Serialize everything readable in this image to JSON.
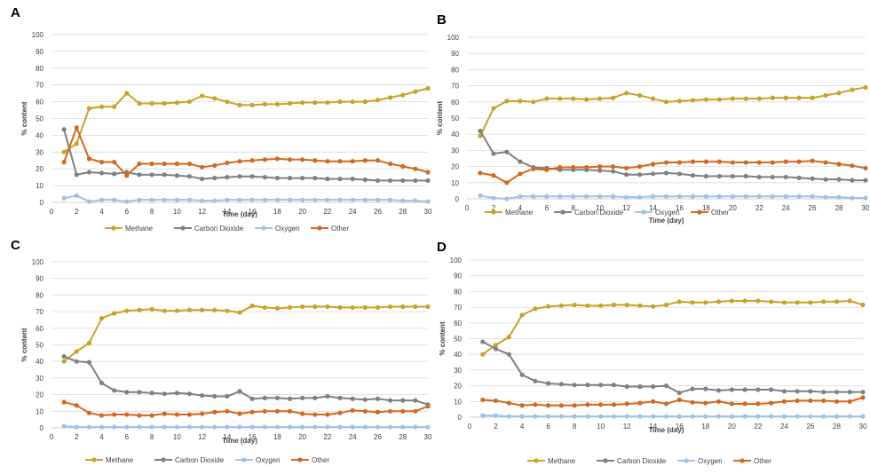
{
  "colors": {
    "Methane": "#C9A227",
    "Carbon Dioxide": "#808080",
    "Oxygen": "#9DC3E6",
    "Other": "#D2691E",
    "grid": "#D9D9D9",
    "axis": "#BFBFBF"
  },
  "chart_data": [
    {
      "panel": "A",
      "type": "line",
      "xlabel": "Time (day)",
      "ylabel": "% content",
      "xlim": [
        0,
        30
      ],
      "ylim": [
        0,
        100
      ],
      "xticks": [
        0,
        2,
        4,
        6,
        8,
        10,
        12,
        14,
        16,
        18,
        20,
        22,
        24,
        26,
        28,
        30
      ],
      "yticks": [
        0,
        10,
        20,
        30,
        40,
        50,
        60,
        70,
        80,
        90,
        100
      ],
      "grid": true,
      "legend_position": "bottom",
      "x": [
        1,
        2,
        3,
        4,
        5,
        6,
        7,
        8,
        9,
        10,
        11,
        12,
        13,
        14,
        15,
        16,
        17,
        18,
        19,
        20,
        21,
        22,
        23,
        24,
        25,
        26,
        27,
        28,
        29,
        30
      ],
      "series": [
        {
          "name": "Methane",
          "values": [
            30,
            35,
            56,
            57,
            57,
            65,
            59,
            59,
            59,
            59.5,
            60,
            63.5,
            62,
            60,
            58,
            58,
            58.5,
            58.5,
            59,
            59.5,
            59.5,
            59.5,
            60,
            60,
            60,
            61,
            62.5,
            64,
            66,
            68
          ]
        },
        {
          "name": "Carbon Dioxide",
          "values": [
            43.5,
            16.5,
            18,
            17.5,
            17,
            18,
            16.5,
            16.5,
            16.5,
            16,
            15.5,
            14,
            14.5,
            15,
            15.5,
            15.5,
            15,
            14.5,
            14.5,
            14.5,
            14.5,
            14,
            14,
            14,
            13.5,
            13,
            13,
            13,
            13,
            13
          ]
        },
        {
          "name": "Oxygen",
          "values": [
            2.5,
            4,
            0.5,
            1.5,
            1.5,
            0.5,
            1.5,
            1.5,
            1.5,
            1.5,
            1.5,
            1,
            1,
            1.5,
            1.5,
            1.5,
            1.5,
            1.5,
            1.5,
            1.5,
            1.5,
            1.5,
            1.5,
            1.5,
            1.5,
            1.5,
            1.5,
            1,
            1,
            0.5
          ]
        },
        {
          "name": "Other",
          "values": [
            24,
            44.5,
            26,
            24,
            24,
            16,
            23,
            23,
            23,
            23,
            23,
            21,
            22,
            23.5,
            24.5,
            25,
            25.5,
            26,
            25.5,
            25.5,
            25,
            24.5,
            24.5,
            24.5,
            25,
            25,
            23,
            21.5,
            20,
            18
          ]
        }
      ]
    },
    {
      "panel": "B",
      "type": "line",
      "xlabel": "Time (day)",
      "ylabel": "% content",
      "xlim": [
        0,
        30
      ],
      "ylim": [
        0,
        100
      ],
      "xticks": [
        0,
        2,
        4,
        6,
        8,
        10,
        12,
        14,
        16,
        18,
        20,
        22,
        24,
        26,
        28,
        30
      ],
      "yticks": [
        0,
        10,
        20,
        30,
        40,
        50,
        60,
        70,
        80,
        90,
        100
      ],
      "grid": true,
      "legend_position": "bottom",
      "x": [
        1,
        2,
        3,
        4,
        5,
        6,
        7,
        8,
        9,
        10,
        11,
        12,
        13,
        14,
        15,
        16,
        17,
        18,
        19,
        20,
        21,
        22,
        23,
        24,
        25,
        26,
        27,
        28,
        29,
        30
      ],
      "series": [
        {
          "name": "Methane",
          "values": [
            39,
            56,
            60.5,
            60.5,
            60,
            62,
            62,
            62,
            61.5,
            62,
            62.5,
            65.5,
            64,
            62,
            60,
            60.5,
            61,
            61.5,
            61.5,
            62,
            62,
            62,
            62.5,
            62.5,
            62.5,
            62.5,
            64,
            65.5,
            67.5,
            69
          ]
        },
        {
          "name": "Carbon Dioxide",
          "values": [
            42,
            28,
            29,
            23,
            19.5,
            19,
            18,
            18,
            18,
            17.5,
            17,
            15,
            15,
            15.5,
            16,
            15.5,
            14.5,
            14,
            14,
            14,
            14,
            13.5,
            13.5,
            13.5,
            13,
            12.5,
            12,
            12,
            11.5,
            11.5
          ]
        },
        {
          "name": "Oxygen",
          "values": [
            2,
            0.5,
            0,
            1.5,
            1.5,
            1.5,
            1.5,
            1.5,
            1.5,
            1.5,
            1.5,
            1,
            1,
            1.5,
            1.5,
            1.5,
            1.5,
            1.5,
            1.5,
            1.5,
            1.5,
            1.5,
            1.5,
            1.5,
            1.5,
            1.5,
            1,
            1,
            0.5,
            0.5
          ]
        },
        {
          "name": "Other",
          "values": [
            16,
            14.5,
            10,
            15.5,
            18.5,
            18,
            19.5,
            19.5,
            19.5,
            20,
            20,
            19,
            20,
            21.5,
            22.5,
            22.5,
            23,
            23,
            23,
            22.5,
            22.5,
            22.5,
            22.5,
            23,
            23,
            23.5,
            22.5,
            21.5,
            20.5,
            19
          ]
        }
      ]
    },
    {
      "panel": "C",
      "type": "line",
      "xlabel": "Time (day)",
      "ylabel": "% content",
      "xlim": [
        0,
        30
      ],
      "ylim": [
        0,
        100
      ],
      "xticks": [
        0,
        2,
        4,
        6,
        8,
        10,
        12,
        14,
        16,
        18,
        20,
        22,
        24,
        26,
        28,
        30
      ],
      "yticks": [
        0,
        10,
        20,
        30,
        40,
        50,
        60,
        70,
        80,
        90,
        100
      ],
      "grid": true,
      "legend_position": "bottom",
      "x": [
        1,
        2,
        3,
        4,
        5,
        6,
        7,
        8,
        9,
        10,
        11,
        12,
        13,
        14,
        15,
        16,
        17,
        18,
        19,
        20,
        21,
        22,
        23,
        24,
        25,
        26,
        27,
        28,
        29,
        30
      ],
      "series": [
        {
          "name": "Methane",
          "values": [
            40,
            46,
            51,
            66,
            69,
            70.5,
            71,
            71.5,
            70.5,
            70.5,
            71,
            71,
            71,
            70.5,
            69.5,
            73.5,
            72.5,
            72,
            72.5,
            73,
            73,
            73,
            72.5,
            72.5,
            72.5,
            72.5,
            73,
            73,
            73,
            73
          ]
        },
        {
          "name": "Carbon Dioxide",
          "values": [
            43,
            40,
            39.5,
            27,
            22.5,
            21.5,
            21.5,
            21,
            20.5,
            21,
            20.5,
            19.5,
            19,
            19,
            22,
            17.5,
            18,
            18,
            17.5,
            18,
            18,
            19,
            18,
            17.5,
            17,
            17.5,
            16.5,
            16.5,
            16.5,
            14
          ]
        },
        {
          "name": "Oxygen",
          "values": [
            1,
            0.5,
            0.5,
            0.5,
            0.5,
            0.5,
            0.5,
            0.5,
            0.5,
            0.5,
            0.5,
            0.5,
            0.5,
            0.5,
            0.5,
            0.5,
            0.5,
            0.5,
            0.5,
            0.5,
            0.5,
            0.5,
            0.5,
            0.5,
            0.5,
            0.5,
            0.5,
            0.5,
            0.5,
            0.5
          ]
        },
        {
          "name": "Other",
          "values": [
            15.5,
            13.5,
            9,
            7.5,
            8,
            8,
            7.5,
            7.5,
            8.5,
            8,
            8,
            8.5,
            9.5,
            10,
            8.5,
            9.5,
            10,
            10,
            10,
            8.5,
            8,
            8,
            9,
            10.5,
            10,
            9.5,
            10,
            10,
            10,
            13
          ]
        }
      ]
    },
    {
      "panel": "D",
      "type": "line",
      "xlabel": "Time (day)",
      "ylabel": "% content",
      "xlim": [
        0,
        30
      ],
      "ylim": [
        0,
        100
      ],
      "xticks": [
        0,
        2,
        4,
        6,
        8,
        10,
        12,
        14,
        16,
        18,
        20,
        22,
        24,
        26,
        28,
        30
      ],
      "yticks": [
        0,
        10,
        20,
        30,
        40,
        50,
        60,
        70,
        80,
        90,
        100
      ],
      "grid": true,
      "legend_position": "bottom",
      "x": [
        1,
        2,
        3,
        4,
        5,
        6,
        7,
        8,
        9,
        10,
        11,
        12,
        13,
        14,
        15,
        16,
        17,
        18,
        19,
        20,
        21,
        22,
        23,
        24,
        25,
        26,
        27,
        28,
        29,
        30
      ],
      "series": [
        {
          "name": "Methane",
          "values": [
            40,
            46,
            51,
            65,
            69,
            70.5,
            71,
            71.5,
            71,
            71,
            71.5,
            71.5,
            71,
            70.5,
            71.5,
            73.5,
            73,
            73,
            73.5,
            74,
            74,
            74,
            73.5,
            73,
            73,
            73,
            73.5,
            73.5,
            74,
            71.5
          ]
        },
        {
          "name": "Carbon Dioxide",
          "values": [
            48,
            43.5,
            40,
            27,
            23,
            21.5,
            21,
            20.5,
            20.5,
            20.5,
            20.5,
            19.5,
            19.5,
            19.5,
            20,
            15.5,
            18,
            18,
            17,
            17.5,
            17.5,
            17.5,
            17.5,
            16.5,
            16.5,
            16.5,
            16,
            16,
            16,
            16
          ]
        },
        {
          "name": "Oxygen",
          "values": [
            1,
            1,
            0.5,
            0.5,
            0.5,
            0.5,
            0.5,
            0.5,
            0.5,
            0.5,
            0.5,
            0.5,
            0.5,
            0.5,
            0.5,
            0.5,
            0.5,
            0.5,
            0.5,
            0.5,
            0.5,
            0.5,
            0.5,
            0.5,
            0.5,
            0.5,
            0.5,
            0.5,
            0.5,
            0.5
          ]
        },
        {
          "name": "Other",
          "values": [
            11,
            10.5,
            9,
            7.5,
            8,
            7.5,
            7.5,
            7.5,
            8,
            8,
            8,
            8.5,
            9,
            10,
            8.5,
            11,
            9.5,
            9,
            10,
            8.5,
            8.5,
            8.5,
            9,
            10,
            10.5,
            10.5,
            10.5,
            10,
            10,
            12.5
          ]
        }
      ]
    }
  ]
}
